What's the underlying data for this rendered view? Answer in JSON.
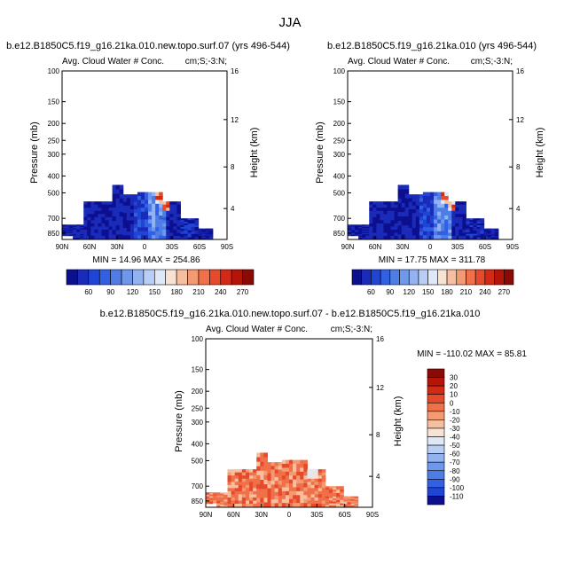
{
  "title": "JJA",
  "panels": [
    {
      "title": "b.e12.B1850C5.f19_g16.21ka.010.new.topo.surf.07 (yrs 496-544)",
      "subtitle_left": "Avg. Cloud Water # Conc.",
      "subtitle_right": "cm;S;-3:N;",
      "min_max": "MIN =  14.96   MAX = 254.86"
    },
    {
      "title": "b.e12.B1850C5.f19_g16.21ka.010 (yrs 496-544)",
      "subtitle_left": "Avg. Cloud Water # Conc.",
      "subtitle_right": "cm;S;-3:N;",
      "min_max": "MIN =  17.75   MAX = 311.78"
    },
    {
      "title": "b.e12.B1850C5.f19_g16.21ka.010.new.topo.surf.07 - b.e12.B1850C5.f19_g16.21ka.010",
      "subtitle_left": "Avg. Cloud Water # Conc.",
      "subtitle_right": "cm;S;-3:N;",
      "min_max": "MIN = -110.02   MAX =  85.81"
    }
  ],
  "axes": {
    "ylabel_left": "Pressure (mb)",
    "ylabel_right": "Height (km)",
    "pressure_ticks": [
      "100",
      "150",
      "200",
      "250",
      "300",
      "400",
      "500",
      "700",
      "850"
    ],
    "height_ticks": [
      "16",
      "12",
      "8",
      "4"
    ],
    "lat_ticks": [
      "90N",
      "60N",
      "30N",
      "0",
      "30S",
      "60S",
      "90S"
    ]
  },
  "colorbar_top": {
    "labels": [
      "60",
      "90",
      "120",
      "150",
      "180",
      "210",
      "240",
      "270"
    ],
    "colors": [
      "#0c0f8e",
      "#1a2ab9",
      "#1f45d6",
      "#3160e2",
      "#4f7de6",
      "#6f98ec",
      "#93b2f0",
      "#b9cef4",
      "#dfe8f6",
      "#f8e2d3",
      "#f6c0a0",
      "#f39a72",
      "#ef7049",
      "#e74a2a",
      "#d42a15",
      "#b51509",
      "#8b0a05"
    ]
  },
  "colorbar_diff": {
    "labels": [
      "30",
      "20",
      "10",
      "0",
      "-10",
      "-20",
      "-30",
      "-40",
      "-50",
      "-60",
      "-70",
      "-80",
      "-90",
      "-100",
      "-110"
    ],
    "colors": [
      "#8b0a05",
      "#b51509",
      "#d42a15",
      "#e74a2a",
      "#ef7049",
      "#f39a72",
      "#f6c0a0",
      "#f8e2d3",
      "#dfe8f6",
      "#b9cef4",
      "#93b2f0",
      "#6f98ec",
      "#4f7de6",
      "#3160e2",
      "#1f45d6",
      "#0c0f8e"
    ]
  },
  "chart_data": [
    {
      "type": "heatmap",
      "title": "b.e12.B1850C5.f19_g16.21ka.010.new.topo.surf.07 (yrs 496-544)",
      "xlabel": "",
      "ylabel": "Pressure (mb)",
      "x_ticks": [
        "90N",
        "60N",
        "30N",
        "0",
        "30S",
        "60S",
        "90S"
      ],
      "y_range": [
        100,
        850
      ],
      "z_min": 14.96,
      "z_max": 254.86
    },
    {
      "type": "heatmap",
      "title": "b.e12.B1850C5.f19_g16.21ka.010 (yrs 496-544)",
      "xlabel": "",
      "ylabel": "Pressure (mb)",
      "x_ticks": [
        "90N",
        "60N",
        "30N",
        "0",
        "30S",
        "60S",
        "90S"
      ],
      "y_range": [
        100,
        850
      ],
      "z_min": 17.75,
      "z_max": 311.78
    },
    {
      "type": "heatmap",
      "title": "b.e12.B1850C5.f19_g16.21ka.010.new.topo.surf.07 - b.e12.B1850C5.f19_g16.21ka.010",
      "xlabel": "",
      "ylabel": "Pressure (mb)",
      "x_ticks": [
        "90N",
        "60N",
        "30N",
        "0",
        "30S",
        "60S",
        "90S"
      ],
      "y_range": [
        100,
        850
      ],
      "z_min": -110.02,
      "z_max": 85.81
    }
  ]
}
